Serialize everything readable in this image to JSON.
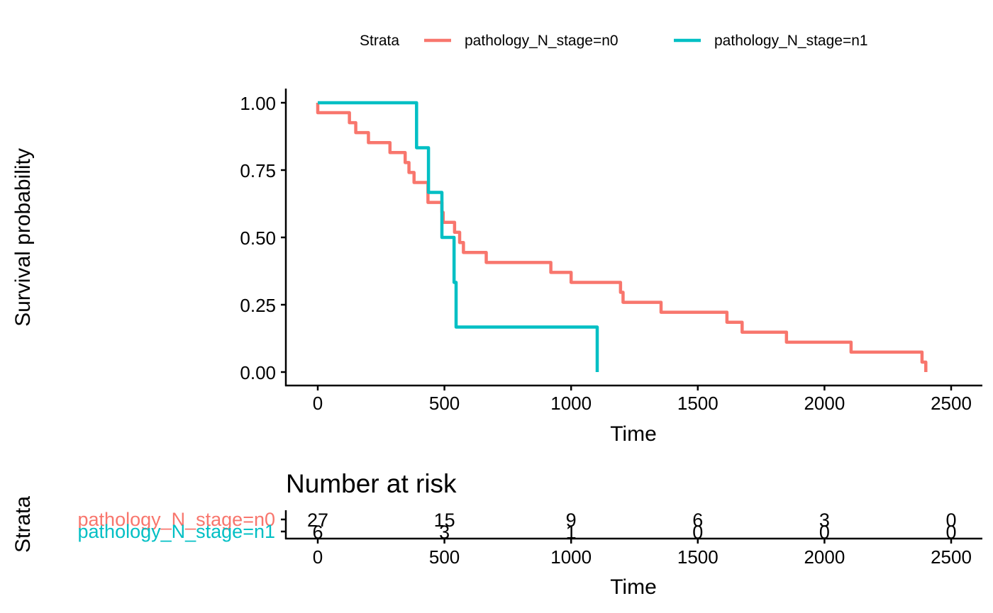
{
  "chart_data": [
    {
      "type": "line",
      "subtype": "kaplan-meier-step",
      "title": "",
      "xlabel": "Time",
      "ylabel": "Survival probability",
      "xlim": [
        -125,
        2625
      ],
      "ylim": [
        -0.05,
        1.05
      ],
      "xticks": [
        0,
        500,
        1000,
        1500,
        2000,
        2500
      ],
      "xtick_labels": [
        "0",
        "500",
        "1000",
        "1500",
        "2000",
        "2500"
      ],
      "yticks": [
        0,
        0.25,
        0.5,
        0.75,
        1.0
      ],
      "ytick_labels": [
        "0.00",
        "0.25",
        "0.50",
        "0.75",
        "1.00"
      ],
      "grid": false,
      "legend": {
        "title": "Strata",
        "placement": "top"
      },
      "series": [
        {
          "name": "pathology_N_stage=n0",
          "color": "#F8766D",
          "x": [
            0,
            0,
            125,
            150,
            200,
            285,
            345,
            360,
            380,
            435,
            490,
            495,
            540,
            560,
            575,
            665,
            920,
            1000,
            1195,
            1205,
            1355,
            1615,
            1675,
            1850,
            2105,
            2385,
            2400
          ],
          "y": [
            1.0,
            0.963,
            0.926,
            0.889,
            0.852,
            0.815,
            0.778,
            0.741,
            0.704,
            0.63,
            0.593,
            0.556,
            0.519,
            0.481,
            0.444,
            0.407,
            0.37,
            0.333,
            0.296,
            0.259,
            0.222,
            0.185,
            0.148,
            0.111,
            0.074,
            0.037,
            0.0
          ]
        },
        {
          "name": "pathology_N_stage=n1",
          "color": "#00BFC4",
          "x": [
            0,
            390,
            437,
            490,
            538,
            546,
            1103
          ],
          "y": [
            1.0,
            0.833,
            0.667,
            0.5,
            0.333,
            0.167,
            0.0
          ]
        }
      ]
    },
    {
      "type": "table",
      "title": "Number at risk",
      "xlabel": "Time",
      "ylabel": "Strata",
      "xticks": [
        0,
        500,
        1000,
        1500,
        2000,
        2500
      ],
      "xtick_labels": [
        "0",
        "500",
        "1000",
        "1500",
        "2000",
        "2500"
      ],
      "rows": [
        {
          "name": "pathology_N_stage=n0",
          "color": "#F8766D",
          "values": [
            27,
            15,
            9,
            6,
            3,
            0
          ]
        },
        {
          "name": "pathology_N_stage=n1",
          "color": "#00BFC4",
          "values": [
            6,
            3,
            1,
            0,
            0,
            0
          ]
        }
      ]
    }
  ]
}
